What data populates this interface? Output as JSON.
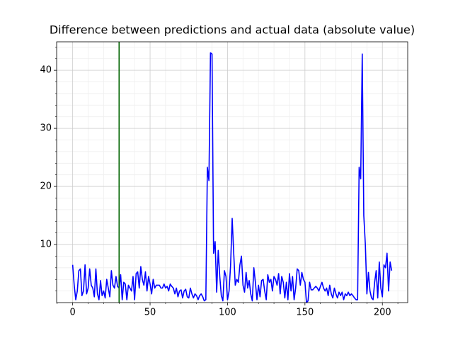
{
  "chart_data": {
    "type": "line",
    "title": "Difference between predictions and actual data (absolute value)",
    "x": [
      0,
      1,
      2,
      3,
      4,
      5,
      6,
      7,
      8,
      9,
      10,
      11,
      12,
      13,
      14,
      15,
      16,
      17,
      18,
      19,
      20,
      21,
      22,
      23,
      24,
      25,
      26,
      27,
      28,
      29,
      30,
      31,
      32,
      33,
      34,
      35,
      36,
      37,
      38,
      39,
      40,
      41,
      42,
      43,
      44,
      45,
      46,
      47,
      48,
      49,
      50,
      51,
      52,
      53,
      54,
      55,
      56,
      57,
      58,
      59,
      60,
      61,
      62,
      63,
      64,
      65,
      66,
      67,
      68,
      69,
      70,
      71,
      72,
      73,
      74,
      75,
      76,
      77,
      78,
      79,
      80,
      81,
      82,
      83,
      84,
      85,
      86,
      87,
      88,
      89,
      90,
      91,
      92,
      93,
      94,
      95,
      96,
      97,
      98,
      99,
      100,
      101,
      102,
      103,
      104,
      105,
      106,
      107,
      108,
      109,
      110,
      111,
      112,
      113,
      114,
      115,
      116,
      117,
      118,
      119,
      120,
      121,
      122,
      123,
      124,
      125,
      126,
      127,
      128,
      129,
      130,
      131,
      132,
      133,
      134,
      135,
      136,
      137,
      138,
      139,
      140,
      141,
      142,
      143,
      144,
      145,
      146,
      147,
      148,
      149,
      150,
      151,
      152,
      153,
      154,
      155,
      156,
      157,
      158,
      159,
      160,
      161,
      162,
      163,
      164,
      165,
      166,
      167,
      168,
      169,
      170,
      171,
      172,
      173,
      174,
      175,
      176,
      177,
      178,
      179,
      180,
      181,
      182,
      183,
      184,
      185,
      186,
      187,
      188,
      189,
      190,
      191,
      192,
      193,
      194,
      195,
      196,
      197,
      198,
      199,
      200,
      201,
      202,
      203,
      204,
      205,
      206
    ],
    "series": [
      {
        "color": "#0000ff",
        "values": [
          6.5,
          3,
          0.5,
          2,
          5.5,
          5.8,
          1.2,
          2,
          6.5,
          1.5,
          2.5,
          5.8,
          3,
          2.5,
          1,
          5.8,
          1.5,
          0.5,
          3.8,
          1.2,
          2,
          0.8,
          4,
          2.5,
          1,
          5.5,
          3,
          2.5,
          4.5,
          2.8,
          2.5,
          4.8,
          0.5,
          3.5,
          3.2,
          0.5,
          3,
          2.5,
          2,
          4.5,
          0.5,
          5,
          5.3,
          2.5,
          6.2,
          4,
          3,
          5.3,
          2,
          4.5,
          3.2,
          1.5,
          4,
          2.5,
          3,
          3,
          3,
          2.5,
          2.5,
          3.2,
          2.5,
          2.8,
          2,
          3.2,
          2.8,
          2.5,
          1.5,
          2.5,
          1,
          2,
          2.2,
          0.8,
          2,
          2.3,
          1,
          0.8,
          2.5,
          1.5,
          0.8,
          1.5,
          1.2,
          0.5,
          1.2,
          1.5,
          1,
          0.3,
          0.5,
          23.3,
          21,
          43,
          42.8,
          8.5,
          10.5,
          1.8,
          9,
          4.5,
          1.2,
          0.3,
          5.5,
          4.5,
          0.5,
          2,
          6.5,
          14.5,
          8.5,
          3,
          4,
          3.5,
          6.5,
          8,
          3,
          1.8,
          5.2,
          2.5,
          3.8,
          1.5,
          0.3,
          6,
          3.5,
          0.5,
          3,
          1,
          3.8,
          4,
          2,
          0.5,
          4.8,
          3.5,
          4,
          2,
          4.5,
          4,
          3,
          5,
          1.5,
          4.5,
          3.5,
          0.8,
          3.5,
          0.5,
          5,
          2,
          4.5,
          0.5,
          2.5,
          5.8,
          5.5,
          3,
          5.2,
          4,
          3.5,
          0,
          0.3,
          3.5,
          2.2,
          2.2,
          2.5,
          2.8,
          2.5,
          2,
          2.8,
          3.5,
          2.5,
          2,
          2.5,
          1.2,
          3,
          1.5,
          0.8,
          2.5,
          1.5,
          0.8,
          1.8,
          1.2,
          1.8,
          0.5,
          1.5,
          1.2,
          1.8,
          1.2,
          1.5,
          1.2,
          0.8,
          0.5,
          0.5,
          23.3,
          21.3,
          42.8,
          15,
          10,
          1.5,
          5.2,
          2,
          0.8,
          0.5,
          3.5,
          5.5,
          0.8,
          7,
          2.5,
          1,
          6.5,
          6,
          8.5,
          2,
          7,
          5.5
        ]
      }
    ],
    "vline": {
      "x": 30,
      "color": "#006400"
    },
    "xlim": [
      -10.35,
      216.35
    ],
    "ylim": [
      0,
      44.9
    ],
    "xticks": [
      0,
      50,
      100,
      150,
      200
    ],
    "yticks": [
      10,
      20,
      30,
      40
    ],
    "xminor": [
      -10,
      10,
      20,
      30,
      40,
      60,
      70,
      80,
      90,
      110,
      120,
      130,
      140,
      160,
      170,
      180,
      190,
      210
    ],
    "yminor": [
      2,
      4,
      6,
      8,
      12,
      14,
      16,
      18,
      22,
      24,
      26,
      28,
      32,
      34,
      36,
      38,
      42,
      44
    ],
    "grid": true,
    "minor_grid": true
  }
}
